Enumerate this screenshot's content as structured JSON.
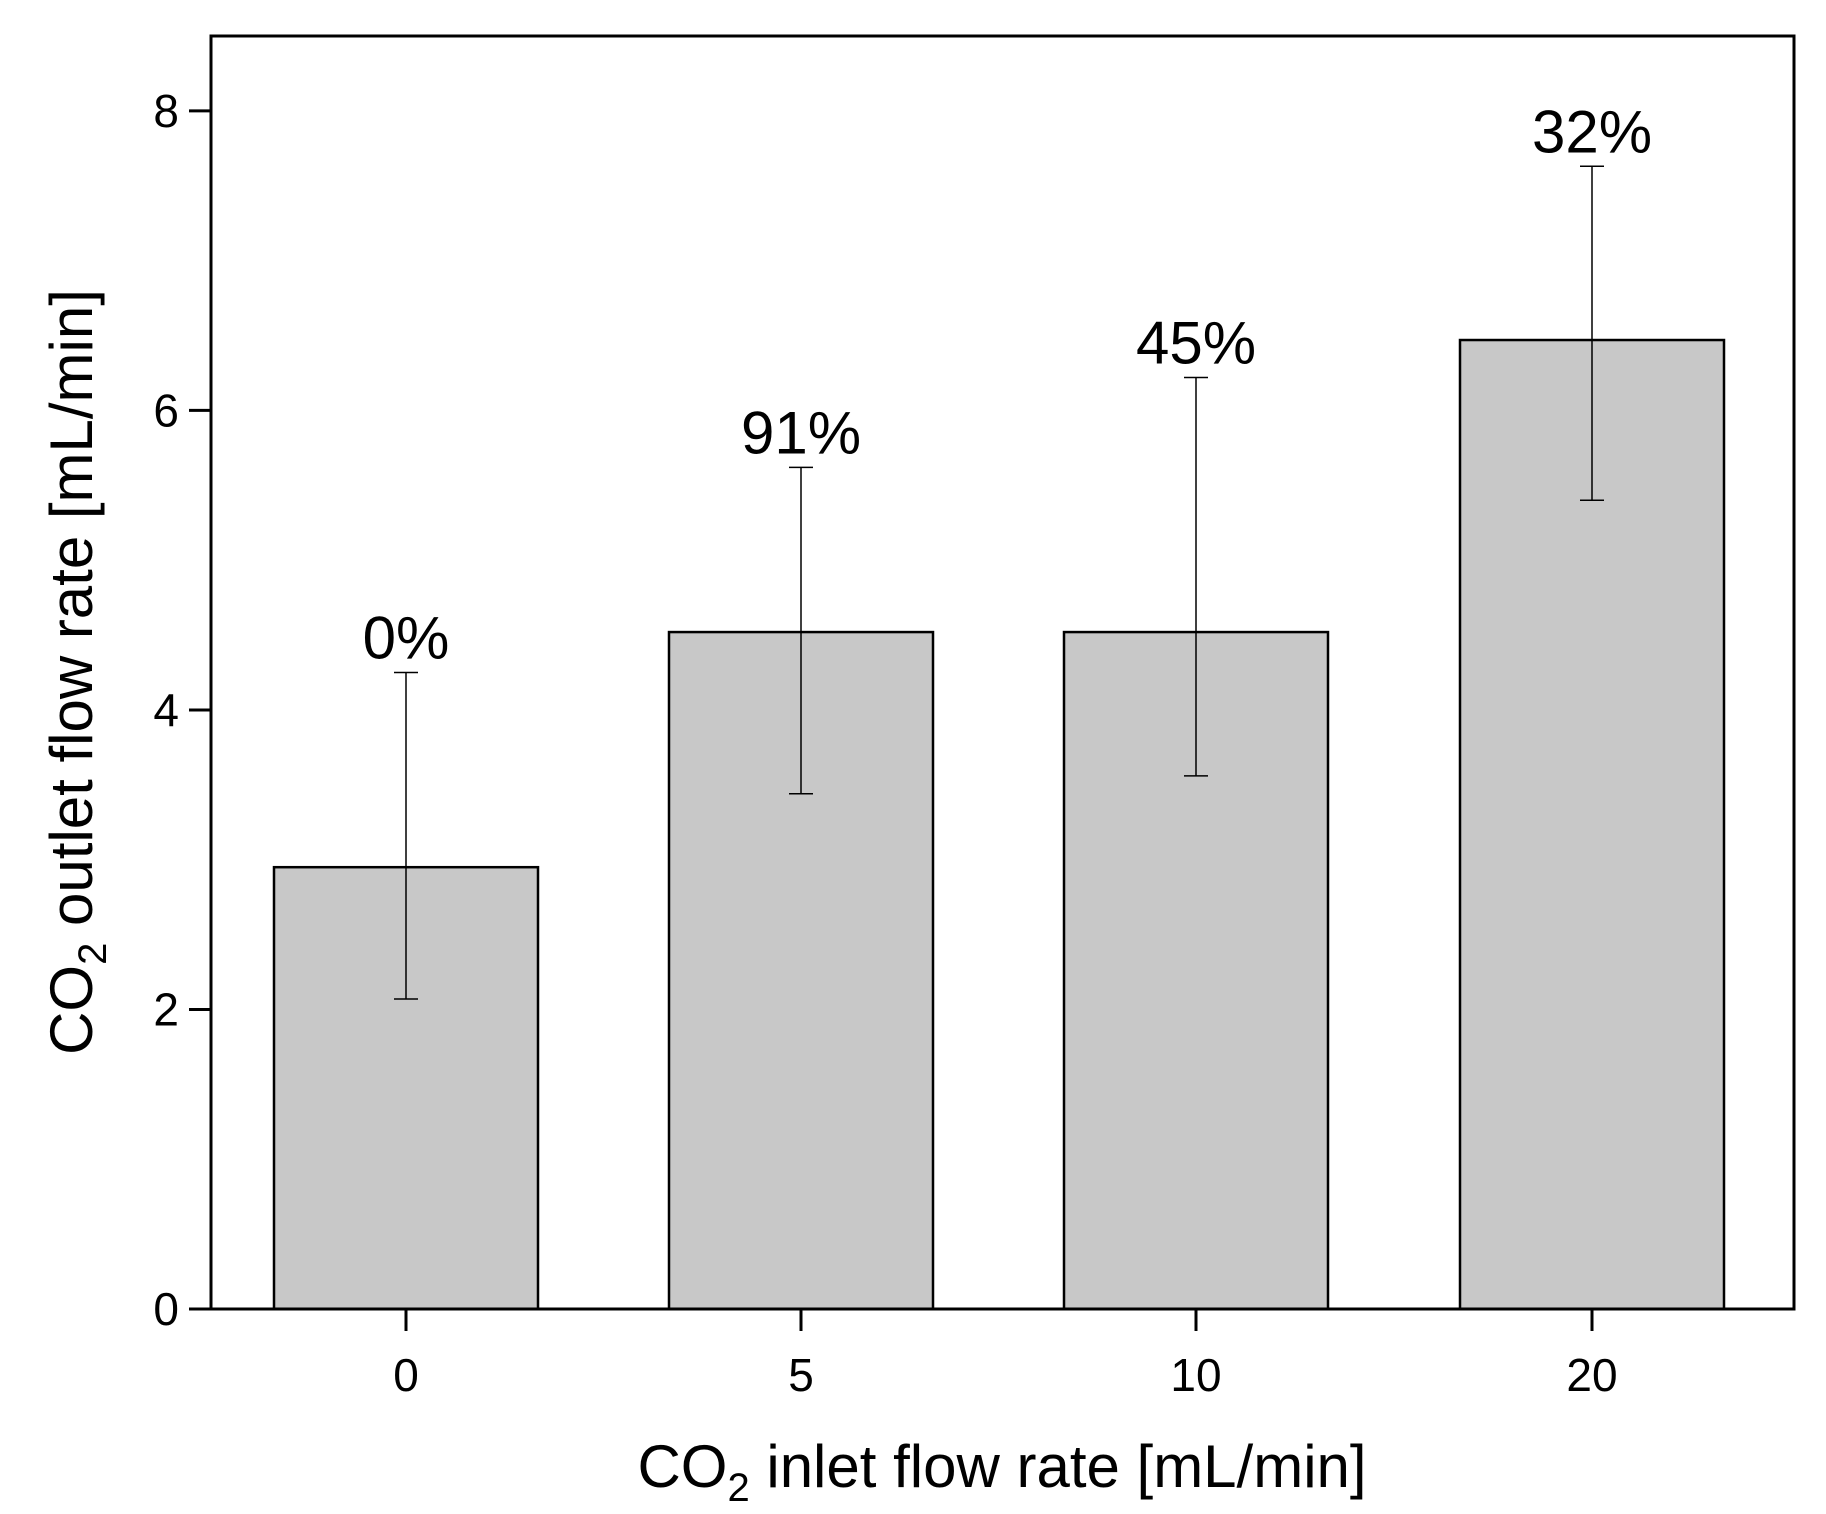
{
  "chart_data": {
    "type": "bar",
    "categories": [
      "0",
      "5",
      "10",
      "20"
    ],
    "values": [
      2.95,
      4.52,
      4.52,
      6.47
    ],
    "error_plus": [
      1.3,
      1.1,
      1.7,
      1.16
    ],
    "error_minus": [
      0.88,
      1.08,
      0.96,
      1.07
    ],
    "data_labels": [
      "0%",
      "91%",
      "45%",
      "32%"
    ],
    "title": "",
    "xlabel": {
      "prefix": "CO",
      "subscript": "2",
      "suffix": " inlet flow rate [mL/min]"
    },
    "ylabel": {
      "prefix": "CO",
      "subscript": "2",
      "suffix": " outlet flow rate [mL/min]"
    },
    "ylim": [
      0,
      8.5
    ],
    "yticks": [
      0,
      2,
      4,
      6,
      8
    ],
    "grid": false,
    "legend": "none",
    "colors": {
      "bar_fill": "#c8c8c8",
      "bar_stroke": "#000000",
      "axis": "#000000",
      "error_bar": "#000000"
    }
  }
}
